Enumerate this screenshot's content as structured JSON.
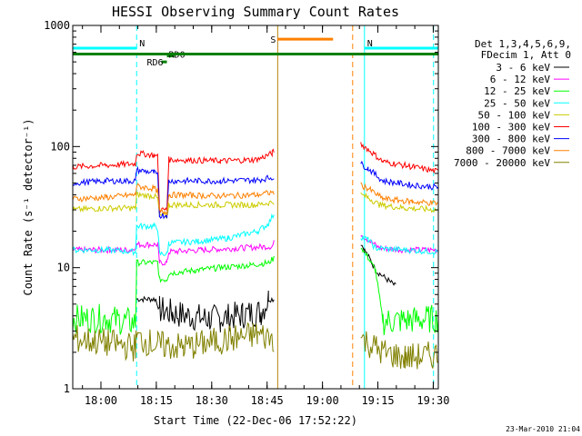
{
  "chart_data": {
    "type": "line",
    "title": "HESSI Observing Summary Count Rates",
    "xlabel": "Start Time (22-Dec-06 17:52:22)",
    "ylabel": "Count Rate (s⁻¹ detector⁻¹)",
    "y_scale": "log",
    "ylim": [
      1,
      1000
    ],
    "xlim_minutes_after_17_52_22": [
      0,
      99
    ],
    "x_ticks": [
      {
        "label": "18:00",
        "t": 7.63
      },
      {
        "label": "18:15",
        "t": 22.63
      },
      {
        "label": "18:30",
        "t": 37.63
      },
      {
        "label": "18:45",
        "t": 52.63
      },
      {
        "label": "19:00",
        "t": 67.63
      },
      {
        "label": "19:15",
        "t": 82.63
      },
      {
        "label": "19:30",
        "t": 97.63
      }
    ],
    "y_ticks": [
      {
        "label": "1",
        "v": 1
      },
      {
        "label": "10",
        "v": 10
      },
      {
        "label": "100",
        "v": 100
      },
      {
        "label": "1000",
        "v": 1000
      }
    ],
    "legend": {
      "header": [
        "Det 1,3,4,5,6,9,",
        "FDecim 1, Att 0"
      ],
      "placement": "right"
    },
    "series": [
      {
        "name": "3 - 6 keV",
        "color": "#000000",
        "points": [
          [
            17.3,
            5.5
          ],
          [
            22.5,
            5.5
          ],
          [
            23.5,
            4.5
          ],
          [
            27,
            4.2
          ],
          [
            36,
            3.8
          ],
          [
            40,
            3.8
          ],
          [
            46,
            4.1
          ],
          [
            51,
            4.3
          ],
          [
            53,
            5.5
          ],
          [
            54.5,
            5.5
          ],
          [
            78,
            16
          ],
          [
            79,
            14
          ],
          [
            81,
            11
          ],
          [
            82,
            9.5
          ],
          [
            87.5,
            7
          ]
        ]
      },
      {
        "name": "6 - 12 keV",
        "color": "#ff00ff",
        "points": [
          [
            0,
            14
          ],
          [
            10,
            14
          ],
          [
            16,
            14
          ],
          [
            17.3,
            15.5
          ],
          [
            23,
            15.5
          ],
          [
            23.5,
            11
          ],
          [
            25.5,
            11
          ],
          [
            26,
            13.5
          ],
          [
            35,
            14
          ],
          [
            45,
            14.5
          ],
          [
            54,
            15
          ],
          [
            54.5,
            16
          ],
          [
            78,
            19
          ],
          [
            80,
            17
          ],
          [
            83,
            14.5
          ],
          [
            90,
            14
          ],
          [
            99,
            14
          ]
        ]
      },
      {
        "name": "12 - 25 keV",
        "color": "#00ff00",
        "points": [
          [
            0,
            3.8
          ],
          [
            9,
            3.8
          ],
          [
            17,
            3.5
          ],
          [
            17.3,
            11
          ],
          [
            23,
            11
          ],
          [
            23.5,
            8
          ],
          [
            25.5,
            8
          ],
          [
            26,
            9
          ],
          [
            33,
            9.5
          ],
          [
            40,
            10
          ],
          [
            48,
            10.5
          ],
          [
            53,
            11
          ],
          [
            54.5,
            12
          ],
          [
            78,
            15
          ],
          [
            80,
            12
          ],
          [
            82,
            9.5
          ],
          [
            84,
            3.6
          ],
          [
            99,
            3.8
          ]
        ]
      },
      {
        "name": "25 - 50 keV",
        "color": "#00ffff",
        "points": [
          [
            0,
            14
          ],
          [
            9,
            14
          ],
          [
            17,
            13.5
          ],
          [
            17.3,
            22
          ],
          [
            22,
            22
          ],
          [
            23,
            21
          ],
          [
            23.5,
            13
          ],
          [
            25.5,
            13
          ],
          [
            26,
            16
          ],
          [
            34,
            16.5
          ],
          [
            42,
            17.5
          ],
          [
            50,
            20
          ],
          [
            53,
            23
          ],
          [
            54.5,
            28
          ],
          [
            78,
            18
          ],
          [
            80,
            17
          ],
          [
            82,
            14.5
          ],
          [
            90,
            14
          ],
          [
            99,
            13.5
          ]
        ]
      },
      {
        "name": "50 - 100 keV",
        "color": "#cccc00",
        "points": [
          [
            0,
            30
          ],
          [
            9,
            31
          ],
          [
            17,
            31
          ],
          [
            17.3,
            40
          ],
          [
            22,
            39
          ],
          [
            23,
            37
          ],
          [
            23.5,
            27
          ],
          [
            25.5,
            27
          ],
          [
            26,
            33
          ],
          [
            40,
            33
          ],
          [
            50,
            33
          ],
          [
            54.5,
            35
          ],
          [
            78,
            40
          ],
          [
            80,
            38
          ],
          [
            83,
            33
          ],
          [
            90,
            31
          ],
          [
            99,
            30
          ]
        ]
      },
      {
        "name": "100 - 300 keV",
        "color": "#ff0000",
        "points": [
          [
            0,
            68
          ],
          [
            9,
            70
          ],
          [
            17,
            72
          ],
          [
            17.3,
            88
          ],
          [
            22,
            85
          ],
          [
            23,
            82
          ],
          [
            23.5,
            30
          ],
          [
            25.5,
            30
          ],
          [
            26,
            78
          ],
          [
            40,
            76
          ],
          [
            50,
            78
          ],
          [
            54,
            88
          ],
          [
            54.5,
            92
          ],
          [
            78,
            105
          ],
          [
            80,
            95
          ],
          [
            84,
            75
          ],
          [
            92,
            68
          ],
          [
            99,
            62
          ]
        ]
      },
      {
        "name": "300 - 800 keV",
        "color": "#0000ff",
        "points": [
          [
            0,
            50
          ],
          [
            9,
            52
          ],
          [
            17,
            52
          ],
          [
            17.3,
            64
          ],
          [
            22,
            61
          ],
          [
            23,
            58
          ],
          [
            23.5,
            27
          ],
          [
            25.5,
            27
          ],
          [
            26,
            52
          ],
          [
            40,
            52
          ],
          [
            50,
            53
          ],
          [
            54.5,
            56
          ],
          [
            78,
            72
          ],
          [
            80,
            66
          ],
          [
            84,
            52
          ],
          [
            92,
            48
          ],
          [
            99,
            46
          ]
        ]
      },
      {
        "name": "800 - 7000 keV",
        "color": "#ff8000",
        "points": [
          [
            0,
            37
          ],
          [
            9,
            38
          ],
          [
            17,
            40
          ],
          [
            17.3,
            47
          ],
          [
            22,
            45
          ],
          [
            23,
            43
          ],
          [
            23.5,
            29
          ],
          [
            25.5,
            29
          ],
          [
            26,
            40
          ],
          [
            40,
            39
          ],
          [
            50,
            40
          ],
          [
            54.5,
            42
          ],
          [
            78,
            48
          ],
          [
            80,
            45
          ],
          [
            84,
            37
          ],
          [
            92,
            35
          ],
          [
            99,
            34
          ]
        ]
      },
      {
        "name": "7000 - 20000 keV",
        "color": "#808000",
        "points": [
          [
            0,
            2.6
          ],
          [
            9,
            2.4
          ],
          [
            17,
            2.2
          ],
          [
            17.3,
            2.6
          ],
          [
            23,
            2.3
          ],
          [
            30,
            2.2
          ],
          [
            40,
            2.5
          ],
          [
            50,
            2.8
          ],
          [
            54.5,
            2.6
          ],
          [
            78,
            2.6
          ],
          [
            84,
            2.0
          ],
          [
            90,
            1.8
          ],
          [
            99,
            1.9
          ]
        ]
      }
    ],
    "annotations": [
      {
        "label": "N",
        "kind": "bar",
        "color": "#00ffff",
        "t": [
          0,
          17.3
        ],
        "v": 650
      },
      {
        "label": "N",
        "kind": "bar",
        "color": "#00ffff",
        "t": [
          79,
          99
        ],
        "v": 650
      },
      {
        "label": "RD6",
        "kind": "bar",
        "color": "#008000",
        "t": [
          24,
          25.5
        ],
        "v": 500
      },
      {
        "label": "RD0",
        "kind": "bar",
        "color": "#008000",
        "t": [
          25.5,
          27.5
        ],
        "v": 560
      },
      {
        "label": "",
        "kind": "bar",
        "color": "#008000",
        "t": [
          0,
          99
        ],
        "v": 580
      },
      {
        "label": "S",
        "kind": "bar",
        "color": "#ff8000",
        "t": [
          55.5,
          70.5
        ],
        "v": 770
      }
    ],
    "vlines": [
      {
        "t": 17.3,
        "color": "#00ffff",
        "style": "dashed"
      },
      {
        "t": 79,
        "color": "#00ffff",
        "style": "solid"
      },
      {
        "t": 97.7,
        "color": "#00ffff",
        "style": "dashed"
      },
      {
        "t": 55.5,
        "color": "#b8860b",
        "style": "solid"
      },
      {
        "t": 75.8,
        "color": "#ff8000",
        "style": "dashed"
      }
    ],
    "gaps": [
      [
        54.5,
        77.7
      ]
    ],
    "footer": "23-Mar-2010 21:04"
  }
}
